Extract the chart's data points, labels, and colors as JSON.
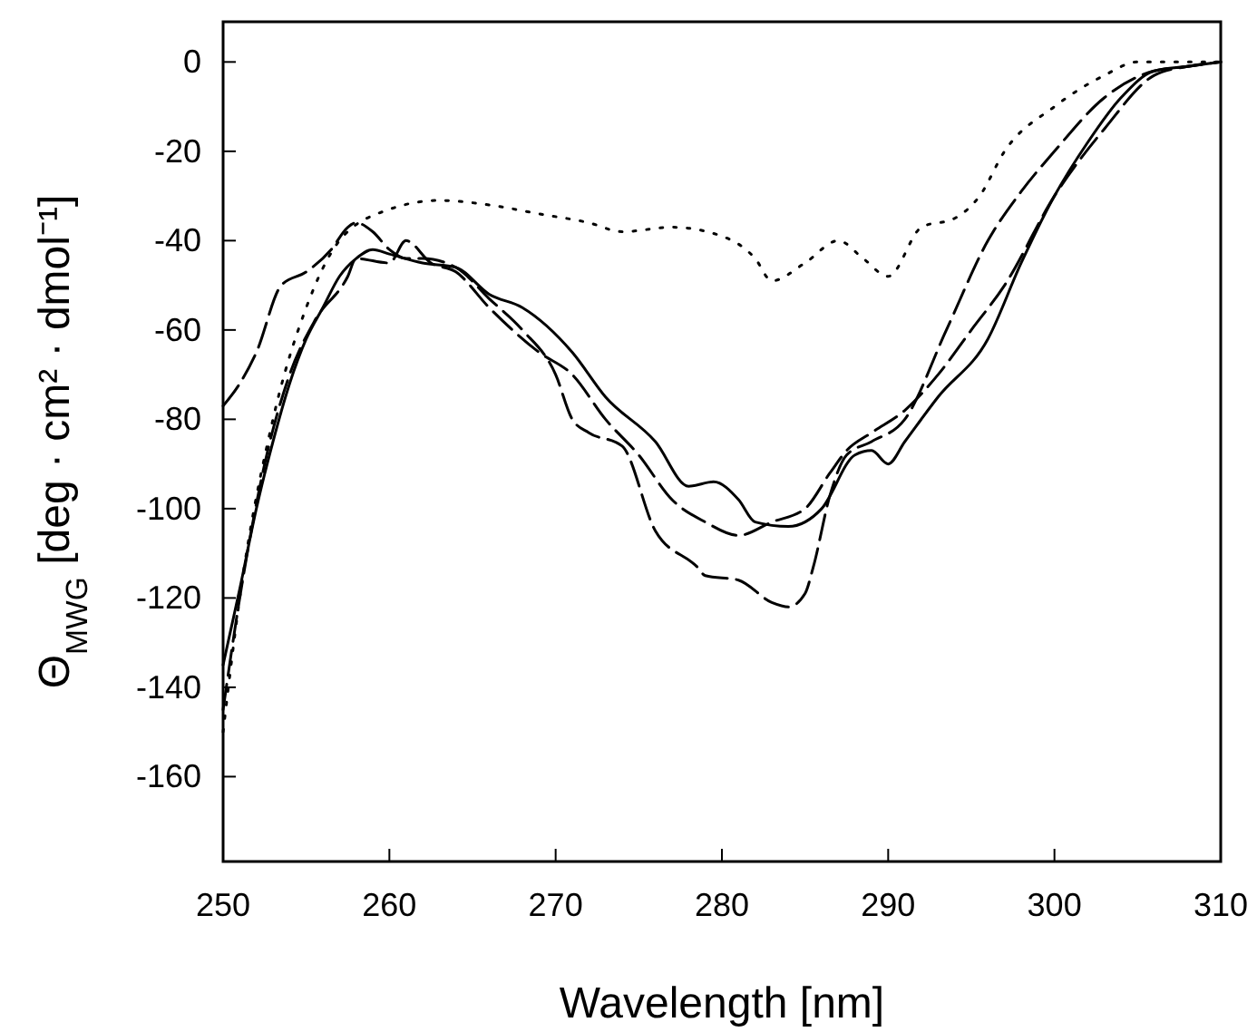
{
  "chart_data": {
    "type": "line",
    "xlabel": "Wavelength [nm]",
    "ylabel": "Θ$_{MWG}$ [deg · cm² · dmol⁻¹]",
    "xlim": [
      250,
      310
    ],
    "ylim": [
      -179,
      9
    ],
    "xticks": [
      250,
      260,
      270,
      280,
      290,
      300,
      310
    ],
    "yticks": [
      0,
      -20,
      -40,
      -60,
      -80,
      -100,
      -120,
      -140,
      -160
    ],
    "grid": false,
    "series": [
      {
        "color": "#000000",
        "line_style": "solid",
        "x": [
          250,
          251,
          252,
          253,
          254,
          255,
          256,
          257,
          258,
          259,
          260,
          262,
          264,
          266,
          268,
          271,
          273,
          276,
          278,
          279.5,
          281,
          282,
          284,
          286,
          288,
          289,
          290,
          291,
          293,
          296,
          298,
          300,
          302,
          304,
          306,
          308,
          310
        ],
        "values": [
          -135,
          -118,
          -100,
          -85,
          -72,
          -62,
          -55,
          -48,
          -44,
          -42,
          -43,
          -45,
          -46,
          -52,
          -55,
          -65,
          -75,
          -85,
          -95,
          -94,
          -98,
          -103,
          -104,
          -100,
          -88,
          -87,
          -90,
          -85,
          -75,
          -62,
          -45,
          -30,
          -18,
          -8,
          -2,
          -1,
          0
        ]
      },
      {
        "color": "#000000",
        "line_style": "dashed",
        "x": [
          250,
          251,
          252,
          253.5,
          255,
          256.5,
          257.5,
          258,
          259,
          260,
          261,
          262,
          264,
          266,
          268,
          270,
          271,
          272,
          274,
          276,
          278.5,
          279,
          281,
          283,
          284,
          285,
          285.5,
          286.5,
          287.5,
          289,
          291,
          293.5,
          296,
          298,
          300,
          303,
          306,
          308,
          310
        ],
        "values": [
          -77,
          -72,
          -65,
          -50,
          -47,
          -42,
          -37,
          -36,
          -38,
          -42,
          -44,
          -44,
          -46,
          -53,
          -60,
          -70,
          -80,
          -83,
          -86,
          -105,
          -113,
          -115,
          -116,
          -121,
          -122,
          -119,
          -113,
          -97,
          -88,
          -85,
          -80,
          -60,
          -40,
          -29,
          -20,
          -8,
          -2,
          -1,
          0
        ]
      },
      {
        "color": "#000000",
        "line_style": "dashed",
        "x": [
          250,
          251,
          252.5,
          254,
          255.5,
          257.5,
          258,
          260,
          261,
          262.5,
          264,
          266,
          269,
          271,
          273,
          275,
          277,
          279,
          281,
          283,
          285,
          286.5,
          287.5,
          289,
          291,
          293,
          295,
          297,
          300,
          303,
          306,
          308,
          310
        ],
        "values": [
          -145,
          -120,
          -90,
          -70,
          -58,
          -48,
          -44,
          -45,
          -40,
          -45,
          -47,
          -55,
          -65,
          -70,
          -80,
          -88,
          -98,
          -103,
          -106,
          -103,
          -100,
          -92,
          -87,
          -83,
          -78,
          -70,
          -60,
          -50,
          -30,
          -15,
          -3,
          -1,
          0
        ]
      },
      {
        "color": "#000000",
        "line_style": "dotted",
        "x": [
          250,
          251,
          253,
          255,
          257,
          260,
          263,
          266,
          269,
          272,
          274,
          277,
          280,
          282,
          283,
          285,
          287,
          288.5,
          290,
          292,
          294,
          295.5,
          297,
          300,
          303,
          305,
          307,
          310
        ],
        "values": [
          -150,
          -120,
          -80,
          -55,
          -40,
          -33,
          -31,
          -32,
          -34,
          -36,
          -38,
          -37,
          -39,
          -44,
          -49,
          -45,
          -40,
          -44,
          -48,
          -37,
          -35,
          -30,
          -20,
          -10,
          -3,
          0,
          0,
          0
        ]
      }
    ]
  }
}
